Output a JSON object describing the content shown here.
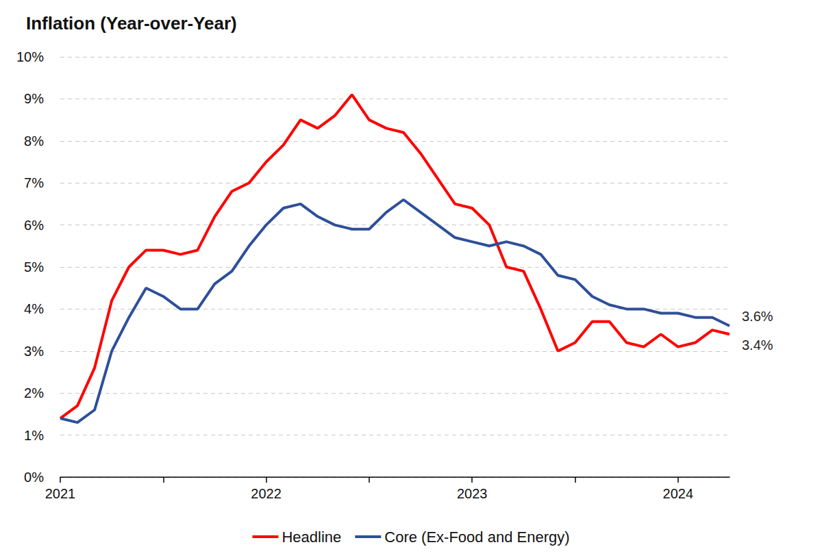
{
  "chart_data": {
    "type": "line",
    "title": "Inflation (Year-over-Year)",
    "categories": [
      "2021",
      null,
      null,
      null,
      null,
      null,
      null,
      null,
      null,
      null,
      null,
      null,
      "2022",
      null,
      null,
      null,
      null,
      null,
      null,
      null,
      null,
      null,
      null,
      null,
      "2023",
      null,
      null,
      null,
      null,
      null,
      null,
      null,
      null,
      null,
      null,
      null,
      "2024",
      null,
      null,
      null
    ],
    "series": [
      {
        "name": "Headline",
        "color": "#ff0000",
        "line_style": "solid",
        "values": [
          1.4,
          1.7,
          2.6,
          4.2,
          5.0,
          5.4,
          5.4,
          5.3,
          5.4,
          6.2,
          6.8,
          7.0,
          7.5,
          7.9,
          8.5,
          8.3,
          8.6,
          9.1,
          8.5,
          8.3,
          8.2,
          7.7,
          7.1,
          6.5,
          6.4,
          6.0,
          5.0,
          4.9,
          4.0,
          3.0,
          3.2,
          3.7,
          3.7,
          3.2,
          3.1,
          3.4,
          3.1,
          3.2,
          3.5,
          3.4
        ]
      },
      {
        "name": "Core (Ex-Food and Energy)",
        "color": "#2e4f9a",
        "line_style": "solid",
        "values": [
          1.4,
          1.3,
          1.6,
          3.0,
          3.8,
          4.5,
          4.3,
          4.0,
          4.0,
          4.6,
          4.9,
          5.5,
          6.0,
          6.4,
          6.5,
          6.2,
          6.0,
          5.9,
          5.9,
          6.3,
          6.6,
          6.3,
          6.0,
          5.7,
          5.6,
          5.5,
          5.6,
          5.5,
          5.3,
          4.8,
          4.7,
          4.3,
          4.1,
          4.0,
          4.0,
          3.9,
          3.9,
          3.8,
          3.8,
          3.6
        ]
      }
    ],
    "ylim": [
      0,
      10
    ],
    "yticks": [
      {
        "value": 0,
        "label": "0%"
      },
      {
        "value": 1,
        "label": "1%"
      },
      {
        "value": 2,
        "label": "2%"
      },
      {
        "value": 3,
        "label": "3%"
      },
      {
        "value": 4,
        "label": "4%"
      },
      {
        "value": 5,
        "label": "5%"
      },
      {
        "value": 6,
        "label": "6%"
      },
      {
        "value": 7,
        "label": "7%"
      },
      {
        "value": 8,
        "label": "8%"
      },
      {
        "value": 9,
        "label": "9%"
      },
      {
        "value": 10,
        "label": "10%"
      }
    ],
    "grid": true,
    "legend": "bottom",
    "annotations": [
      {
        "series": "Core (Ex-Food and Energy)",
        "text": "3.6%"
      },
      {
        "series": "Headline",
        "text": "3.4%"
      }
    ]
  }
}
